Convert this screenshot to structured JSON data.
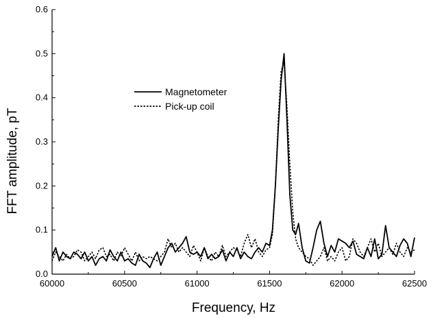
{
  "chart_data": {
    "type": "line",
    "title": "",
    "xlabel": "Frequency, Hz",
    "ylabel": "FFT amplitude, pT",
    "xlim": [
      60000,
      62500
    ],
    "ylim": [
      0.0,
      0.6
    ],
    "grid": false,
    "legend_position": "upper-left",
    "x_ticks": [
      "60000",
      "60500",
      "61000",
      "61500",
      "62000",
      "62500"
    ],
    "y_ticks": [
      "0.0",
      "0.1",
      "0.2",
      "0.3",
      "0.4",
      "0.5",
      "0.6"
    ],
    "series": [
      {
        "name": "Magnetometer",
        "style": "solid",
        "color": "#000000",
        "x": [
          60000,
          60025,
          60050,
          60075,
          60100,
          60125,
          60150,
          60175,
          60200,
          60225,
          60250,
          60275,
          60300,
          60325,
          60350,
          60375,
          60400,
          60425,
          60450,
          60475,
          60500,
          60525,
          60550,
          60575,
          60600,
          60625,
          60650,
          60675,
          60700,
          60725,
          60750,
          60775,
          60800,
          60825,
          60850,
          60875,
          60900,
          60925,
          60950,
          60975,
          61000,
          61025,
          61050,
          61075,
          61100,
          61125,
          61150,
          61175,
          61200,
          61225,
          61250,
          61275,
          61300,
          61325,
          61350,
          61375,
          61400,
          61425,
          61450,
          61475,
          61500,
          61520,
          61540,
          61560,
          61580,
          61600,
          61620,
          61640,
          61660,
          61680,
          61700,
          61725,
          61750,
          61775,
          61800,
          61825,
          61850,
          61875,
          61900,
          61925,
          61950,
          61975,
          62000,
          62025,
          62050,
          62075,
          62100,
          62125,
          62150,
          62175,
          62200,
          62225,
          62250,
          62275,
          62300,
          62325,
          62350,
          62375,
          62400,
          62425,
          62450,
          62475,
          62500
        ],
        "y": [
          0.04,
          0.06,
          0.03,
          0.05,
          0.04,
          0.035,
          0.05,
          0.045,
          0.035,
          0.05,
          0.03,
          0.04,
          0.02,
          0.035,
          0.04,
          0.03,
          0.055,
          0.04,
          0.03,
          0.05,
          0.03,
          0.035,
          0.025,
          0.02,
          0.045,
          0.03,
          0.025,
          0.015,
          0.035,
          0.05,
          0.02,
          0.04,
          0.06,
          0.07,
          0.05,
          0.06,
          0.07,
          0.085,
          0.05,
          0.045,
          0.05,
          0.04,
          0.06,
          0.035,
          0.045,
          0.035,
          0.04,
          0.055,
          0.03,
          0.05,
          0.04,
          0.06,
          0.035,
          0.05,
          0.04,
          0.035,
          0.05,
          0.06,
          0.05,
          0.07,
          0.065,
          0.1,
          0.2,
          0.33,
          0.44,
          0.5,
          0.35,
          0.18,
          0.1,
          0.09,
          0.115,
          0.06,
          0.03,
          0.025,
          0.06,
          0.1,
          0.12,
          0.07,
          0.04,
          0.065,
          0.05,
          0.08,
          0.075,
          0.07,
          0.06,
          0.075,
          0.045,
          0.04,
          0.035,
          0.06,
          0.04,
          0.08,
          0.035,
          0.045,
          0.11,
          0.06,
          0.05,
          0.04,
          0.065,
          0.08,
          0.07,
          0.04,
          0.083
        ]
      },
      {
        "name": "Pick-up coil",
        "style": "dotted",
        "color": "#000000",
        "x": [
          60000,
          60025,
          60050,
          60075,
          60100,
          60125,
          60150,
          60175,
          60200,
          60225,
          60250,
          60275,
          60300,
          60325,
          60350,
          60375,
          60400,
          60425,
          60450,
          60475,
          60500,
          60525,
          60550,
          60575,
          60600,
          60625,
          60650,
          60675,
          60700,
          60725,
          60750,
          60775,
          60800,
          60825,
          60850,
          60875,
          60900,
          60925,
          60950,
          60975,
          61000,
          61025,
          61050,
          61075,
          61100,
          61125,
          61150,
          61175,
          61200,
          61225,
          61250,
          61275,
          61300,
          61325,
          61350,
          61375,
          61400,
          61425,
          61450,
          61475,
          61500,
          61520,
          61540,
          61560,
          61580,
          61600,
          61620,
          61640,
          61660,
          61680,
          61700,
          61725,
          61750,
          61775,
          61800,
          61825,
          61850,
          61875,
          61900,
          61925,
          61950,
          61975,
          62000,
          62025,
          62050,
          62075,
          62100,
          62125,
          62150,
          62175,
          62200,
          62225,
          62250,
          62275,
          62300,
          62325,
          62350,
          62375,
          62400,
          62425,
          62450,
          62475,
          62500
        ],
        "y": [
          0.03,
          0.05,
          0.04,
          0.03,
          0.045,
          0.035,
          0.04,
          0.055,
          0.05,
          0.03,
          0.04,
          0.05,
          0.035,
          0.055,
          0.06,
          0.04,
          0.045,
          0.03,
          0.05,
          0.04,
          0.06,
          0.045,
          0.03,
          0.05,
          0.03,
          0.04,
          0.035,
          0.04,
          0.035,
          0.03,
          0.04,
          0.05,
          0.08,
          0.06,
          0.07,
          0.05,
          0.06,
          0.05,
          0.04,
          0.065,
          0.05,
          0.03,
          0.06,
          0.04,
          0.03,
          0.05,
          0.04,
          0.065,
          0.04,
          0.05,
          0.06,
          0.055,
          0.04,
          0.07,
          0.09,
          0.06,
          0.08,
          0.05,
          0.04,
          0.055,
          0.06,
          0.09,
          0.2,
          0.35,
          0.46,
          0.48,
          0.38,
          0.25,
          0.14,
          0.08,
          0.06,
          0.05,
          0.04,
          0.035,
          0.02,
          0.03,
          0.04,
          0.06,
          0.03,
          0.04,
          0.03,
          0.05,
          0.06,
          0.03,
          0.04,
          0.08,
          0.07,
          0.05,
          0.04,
          0.06,
          0.08,
          0.05,
          0.07,
          0.04,
          0.05,
          0.06,
          0.045,
          0.07,
          0.05,
          0.04,
          0.06,
          0.05,
          0.055
        ]
      }
    ]
  }
}
